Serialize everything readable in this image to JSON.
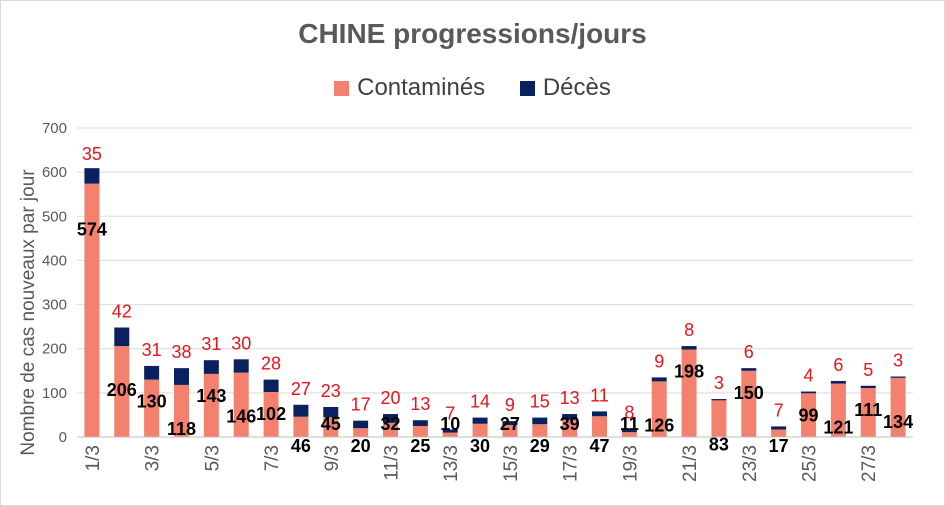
{
  "chart_data": {
    "type": "bar",
    "stacked": true,
    "title": "CHINE progressions/jours",
    "ylabel": "Nombre de cas nouveaux par jour",
    "xlabel": "",
    "ylim": [
      0,
      700
    ],
    "yticks": [
      0,
      100,
      200,
      300,
      400,
      500,
      600,
      700
    ],
    "grid": true,
    "legend_position": "top",
    "categories": [
      "1/3",
      "2/3",
      "3/3",
      "4/3",
      "5/3",
      "6/3",
      "7/3",
      "8/3",
      "9/3",
      "10/3",
      "11/3",
      "12/3",
      "13/3",
      "14/3",
      "15/3",
      "16/3",
      "17/3",
      "18/3",
      "19/3",
      "20/3",
      "21/3",
      "22/3",
      "23/3",
      "24/3",
      "25/3",
      "26/3",
      "27/3",
      "28/3"
    ],
    "xtick_labels": [
      "1/3",
      "3/3",
      "5/3",
      "7/3",
      "9/3",
      "11/3",
      "13/3",
      "15/3",
      "17/3",
      "19/3",
      "21/3",
      "23/3",
      "25/3",
      "27/3"
    ],
    "series": [
      {
        "name": "Contaminés",
        "color": "#f4806e",
        "values": [
          574,
          206,
          130,
          118,
          143,
          146,
          102,
          46,
          45,
          20,
          32,
          25,
          10,
          30,
          27,
          29,
          39,
          47,
          11,
          126,
          198,
          83,
          150,
          17,
          99,
          121,
          111,
          134
        ]
      },
      {
        "name": "Décès",
        "color": "#0a2160",
        "values": [
          35,
          42,
          31,
          38,
          31,
          30,
          28,
          27,
          23,
          17,
          20,
          13,
          7,
          14,
          9,
          15,
          13,
          11,
          8,
          9,
          8,
          3,
          6,
          7,
          4,
          6,
          5,
          3
        ]
      }
    ]
  }
}
